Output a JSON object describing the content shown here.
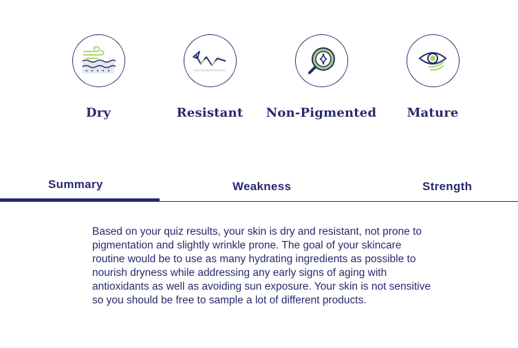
{
  "skin_types": [
    {
      "label": "Dry",
      "icon": "wind-waves-icon"
    },
    {
      "label": "Resistant",
      "icon": "deflect-arrows-icon"
    },
    {
      "label": "Non-Pigmented",
      "icon": "magnifier-sparkle-icon"
    },
    {
      "label": "Mature",
      "icon": "eye-icon"
    }
  ],
  "tabs": [
    {
      "label": "Summary",
      "active": true
    },
    {
      "label": "Weakness",
      "active": false
    },
    {
      "label": "Strength",
      "active": false
    }
  ],
  "summary": {
    "text": "Based on your quiz results, your skin is dry and resistant, not prone to pigmentation and slightly wrinkle prone. The goal of your skincare routine would be to use as many hydrating ingredients as possible to nourish dryness while addressing any early signs of aging with antioxidants as well as avoiding sun exposure. Your skin is not sensitive so you should be free to sample a lot of different products."
  },
  "colors": {
    "navy": "#27296d",
    "lime": "#a8d86a"
  }
}
